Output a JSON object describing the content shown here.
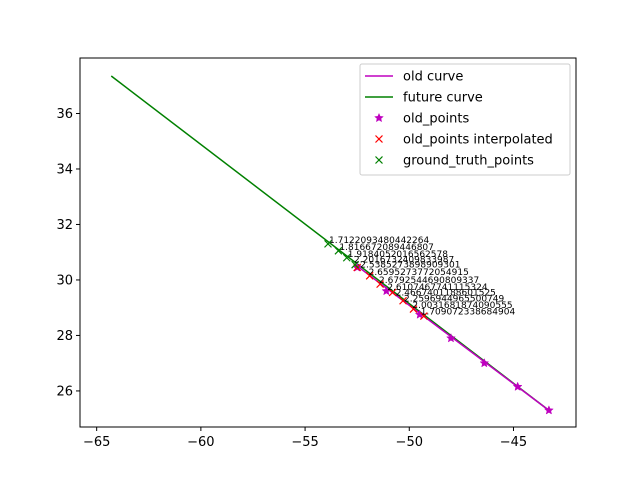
{
  "chart_data": {
    "type": "line",
    "title": "",
    "xlabel": "",
    "ylabel": "",
    "xlim": [
      -65.8,
      -42.0
    ],
    "ylim": [
      24.7,
      38.0
    ],
    "xticks": [
      -65,
      -60,
      -55,
      -50,
      -45
    ],
    "yticks": [
      26,
      28,
      30,
      32,
      34,
      36
    ],
    "xtick_labels": [
      "−65",
      "−60",
      "−55",
      "−50",
      "−45"
    ],
    "ytick_labels": [
      "26",
      "28",
      "30",
      "32",
      "34",
      "36"
    ],
    "grid": false,
    "legend_position": "top-right",
    "series": [
      {
        "name": "old curve",
        "kind": "line",
        "color": "#bf00bf",
        "x": [
          -52.5,
          -43.3
        ],
        "y": [
          30.5,
          25.3
        ]
      },
      {
        "name": "future curve",
        "kind": "line",
        "color": "#008000",
        "x": [
          -64.3,
          -43.3
        ],
        "y": [
          37.35,
          25.3
        ]
      },
      {
        "name": "old_points",
        "kind": "marker",
        "marker": "star",
        "color": "#bf00bf",
        "x": [
          -52.5,
          -51.1,
          -49.5,
          -48.0,
          -46.4,
          -44.8,
          -43.3
        ],
        "y": [
          30.45,
          29.6,
          28.75,
          27.9,
          27.0,
          26.15,
          25.3
        ]
      },
      {
        "name": "old_points interpolated",
        "kind": "marker",
        "marker": "x",
        "color": "#ff0000",
        "x": [
          -52.5,
          -51.9,
          -51.4,
          -50.8,
          -50.3,
          -49.8,
          -49.3
        ],
        "y": [
          30.45,
          30.15,
          29.85,
          29.55,
          29.25,
          28.95,
          28.7
        ]
      },
      {
        "name": "ground_truth_points",
        "kind": "marker",
        "marker": "x",
        "color": "#008000",
        "x": [
          -53.9,
          -53.4,
          -53.0,
          -52.6
        ],
        "y": [
          31.3,
          31.05,
          30.8,
          30.55
        ]
      }
    ],
    "annotations": [
      {
        "text": "1.7122093480442264",
        "x": -53.9,
        "y": 31.3
      },
      {
        "text": "1.816672089446807",
        "x": -53.4,
        "y": 31.05
      },
      {
        "text": "1.9184052016562578",
        "x": -53.0,
        "y": 30.8
      },
      {
        "text": "2.2016732409833987",
        "x": -52.7,
        "y": 30.6
      },
      {
        "text": "2.5385273898909301",
        "x": -52.4,
        "y": 30.42
      },
      {
        "text": "2.6595273772054915",
        "x": -52.0,
        "y": 30.15
      },
      {
        "text": "2.6792544690809337",
        "x": -51.5,
        "y": 29.85
      },
      {
        "text": "2.6107467741115324",
        "x": -51.1,
        "y": 29.6
      },
      {
        "text": "2.4667401188601525",
        "x": -50.7,
        "y": 29.4
      },
      {
        "text": "2.2596944965500749",
        "x": -50.3,
        "y": 29.18
      },
      {
        "text": "2.0031681874090555",
        "x": -49.9,
        "y": 28.95
      },
      {
        "text": "1.709072338684904",
        "x": -49.5,
        "y": 28.72
      }
    ]
  }
}
